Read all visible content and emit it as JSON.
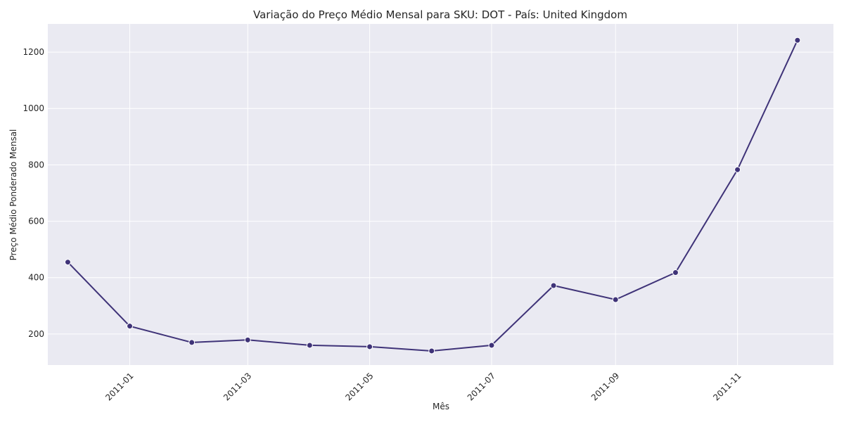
{
  "chart_data": {
    "type": "line",
    "title": "Variação do Preço Médio Mensal para SKU: DOT - País: United Kingdom",
    "xlabel": "Mês",
    "ylabel": "Preço Médio Ponderado Mensal",
    "x": [
      "2010-12-01",
      "2011-01-01",
      "2011-02-01",
      "2011-03-01",
      "2011-04-01",
      "2011-05-01",
      "2011-06-01",
      "2011-07-01",
      "2011-08-01",
      "2011-09-01",
      "2011-10-01",
      "2011-11-01",
      "2011-12-01"
    ],
    "values": [
      455,
      228,
      170,
      179,
      160,
      155,
      140,
      160,
      372,
      322,
      418,
      783,
      1242
    ],
    "ylim": [
      90,
      1300
    ],
    "xlim": [
      "2010-11-21",
      "2011-12-19"
    ],
    "yticks": [
      200,
      400,
      600,
      800,
      1000,
      1200
    ],
    "xticks": [
      "2011-01",
      "2011-03",
      "2011-05",
      "2011-07",
      "2011-09",
      "2011-11"
    ],
    "grid": true,
    "colors": {
      "line": "#3f3378",
      "background": "#eaeaf2",
      "grid": "#ffffff"
    }
  }
}
